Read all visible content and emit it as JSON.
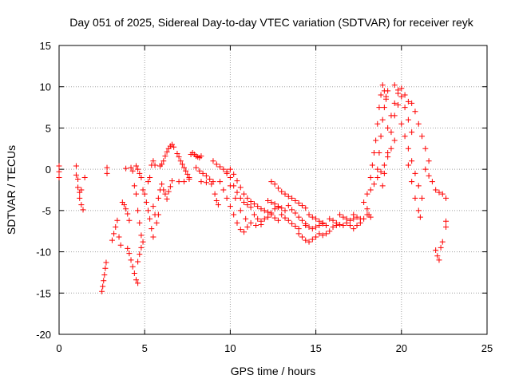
{
  "chart_data": {
    "type": "scatter",
    "title": "Day 051 of 2025, Sidereal Day-to-day VTEC variation (SDTVAR) for receiver reyk",
    "xlabel": "GPS time / hours",
    "ylabel": "SDTVAR / TECUs",
    "xlim": [
      0,
      25
    ],
    "ylim": [
      -20,
      15
    ],
    "xticks": [
      0,
      5,
      10,
      15,
      20,
      25
    ],
    "yticks": [
      -20,
      -15,
      -10,
      -5,
      0,
      5,
      10,
      15
    ],
    "grid": true,
    "marker": "+",
    "color": "#ff0000",
    "series": [
      {
        "name": "SDTVAR",
        "points": [
          [
            0.0,
            0.4
          ],
          [
            0.0,
            -0.3
          ],
          [
            0.0,
            -1.0
          ],
          [
            1.0,
            0.4
          ],
          [
            1.0,
            -0.7
          ],
          [
            1.1,
            -1.2
          ],
          [
            1.1,
            -2.2
          ],
          [
            1.2,
            -2.8
          ],
          [
            1.2,
            -3.5
          ],
          [
            1.3,
            -2.5
          ],
          [
            1.3,
            -4.3
          ],
          [
            1.4,
            -4.9
          ],
          [
            1.5,
            -1.0
          ],
          [
            2.5,
            -14.8
          ],
          [
            2.55,
            -14.2
          ],
          [
            2.6,
            -13.5
          ],
          [
            2.65,
            -12.8
          ],
          [
            2.7,
            -12.0
          ],
          [
            2.75,
            -11.3
          ],
          [
            2.8,
            0.2
          ],
          [
            2.8,
            -0.5
          ],
          [
            3.1,
            -8.6
          ],
          [
            3.2,
            -7.8
          ],
          [
            3.3,
            -7.0
          ],
          [
            3.4,
            -6.2
          ],
          [
            3.5,
            -8.2
          ],
          [
            3.6,
            -9.2
          ],
          [
            3.7,
            -4.0
          ],
          [
            3.8,
            -4.3
          ],
          [
            3.9,
            -4.8
          ],
          [
            4.0,
            -5.4
          ],
          [
            4.1,
            -6.2
          ],
          [
            3.9,
            0.1
          ],
          [
            4.2,
            0.2
          ],
          [
            4.3,
            -0.2
          ],
          [
            4.0,
            -9.6
          ],
          [
            4.1,
            -10.2
          ],
          [
            4.2,
            -11.0
          ],
          [
            4.3,
            -11.8
          ],
          [
            4.4,
            -12.6
          ],
          [
            4.5,
            -13.4
          ],
          [
            4.6,
            -13.8
          ],
          [
            4.4,
            -2.0
          ],
          [
            4.5,
            -3.0
          ],
          [
            4.6,
            -5.0
          ],
          [
            4.7,
            -6.5
          ],
          [
            4.8,
            -8.0
          ],
          [
            4.5,
            0.4
          ],
          [
            4.6,
            0.0
          ],
          [
            4.7,
            -0.5
          ],
          [
            4.8,
            -1.0
          ],
          [
            4.6,
            -11.2
          ],
          [
            4.7,
            -10.3
          ],
          [
            4.8,
            -9.5
          ],
          [
            4.9,
            -8.8
          ],
          [
            4.9,
            -2.5
          ],
          [
            5.0,
            -3.0
          ],
          [
            5.1,
            -4.0
          ],
          [
            5.2,
            -5.0
          ],
          [
            5.3,
            -6.0
          ],
          [
            5.4,
            -7.2
          ],
          [
            5.5,
            -8.2
          ],
          [
            5.2,
            -1.5
          ],
          [
            5.3,
            -1.0
          ],
          [
            5.4,
            0.5
          ],
          [
            5.5,
            1.0
          ],
          [
            5.6,
            0.5
          ],
          [
            5.5,
            -4.5
          ],
          [
            5.6,
            -5.5
          ],
          [
            5.7,
            -6.5
          ],
          [
            5.8,
            -5.5
          ],
          [
            5.8,
            -3.5
          ],
          [
            5.9,
            -2.5
          ],
          [
            6.0,
            -1.8
          ],
          [
            6.1,
            -2.5
          ],
          [
            6.2,
            -3.0
          ],
          [
            6.3,
            -3.6
          ],
          [
            6.4,
            -2.7
          ],
          [
            6.5,
            -2.1
          ],
          [
            6.6,
            -1.4
          ],
          [
            5.9,
            0.4
          ],
          [
            6.0,
            0.6
          ],
          [
            6.1,
            1.0
          ],
          [
            6.2,
            1.6
          ],
          [
            6.3,
            2.1
          ],
          [
            6.4,
            2.5
          ],
          [
            6.5,
            2.8
          ],
          [
            6.6,
            3.0
          ],
          [
            6.7,
            2.7
          ],
          [
            6.9,
            1.9
          ],
          [
            7.0,
            1.5
          ],
          [
            7.1,
            1.0
          ],
          [
            7.2,
            0.6
          ],
          [
            7.3,
            0.2
          ],
          [
            7.4,
            -0.2
          ],
          [
            7.5,
            -0.6
          ],
          [
            7.6,
            -1.0
          ],
          [
            7.0,
            -1.5
          ],
          [
            7.3,
            -1.5
          ],
          [
            7.6,
            -1.2
          ],
          [
            7.7,
            1.8
          ],
          [
            7.8,
            2.0
          ],
          [
            7.9,
            1.8
          ],
          [
            8.0,
            1.6
          ],
          [
            8.1,
            1.5
          ],
          [
            8.2,
            1.4
          ],
          [
            8.3,
            1.6
          ],
          [
            8.0,
            0.2
          ],
          [
            8.2,
            -0.2
          ],
          [
            8.4,
            -0.5
          ],
          [
            8.6,
            -0.8
          ],
          [
            8.8,
            -1.2
          ],
          [
            8.3,
            -1.5
          ],
          [
            8.6,
            -1.6
          ],
          [
            8.9,
            -1.8
          ],
          [
            9.0,
            1.0
          ],
          [
            9.2,
            0.6
          ],
          [
            9.4,
            0.3
          ],
          [
            9.6,
            0.0
          ],
          [
            9.8,
            -0.3
          ],
          [
            9.0,
            -1.5
          ],
          [
            9.1,
            -3.0
          ],
          [
            9.2,
            -3.8
          ],
          [
            9.3,
            -4.3
          ],
          [
            9.4,
            -1.5
          ],
          [
            9.6,
            -2.5
          ],
          [
            9.8,
            -3.5
          ],
          [
            10.0,
            -4.5
          ],
          [
            10.2,
            -5.5
          ],
          [
            10.4,
            -6.5
          ],
          [
            10.6,
            -7.3
          ],
          [
            10.8,
            -7.6
          ],
          [
            11.0,
            -7.0
          ],
          [
            9.8,
            -0.5
          ],
          [
            10.0,
            -1.0
          ],
          [
            10.2,
            -2.0
          ],
          [
            10.4,
            -2.8
          ],
          [
            10.6,
            -3.5
          ],
          [
            10.8,
            -4.0
          ],
          [
            11.0,
            -4.3
          ],
          [
            11.2,
            -4.6
          ],
          [
            10.0,
            0.0
          ],
          [
            10.2,
            -0.6
          ],
          [
            10.4,
            -1.4
          ],
          [
            10.6,
            -2.2
          ],
          [
            10.8,
            -3.0
          ],
          [
            11.0,
            -3.5
          ],
          [
            11.2,
            -3.9
          ],
          [
            11.4,
            -4.2
          ],
          [
            10.0,
            -2.0
          ],
          [
            10.3,
            -3.5
          ],
          [
            10.6,
            -5.0
          ],
          [
            10.9,
            -6.0
          ],
          [
            11.2,
            -6.5
          ],
          [
            11.5,
            -6.8
          ],
          [
            11.8,
            -6.7
          ],
          [
            11.4,
            -5.5
          ],
          [
            11.6,
            -6.0
          ],
          [
            11.8,
            -6.3
          ],
          [
            12.0,
            -6.0
          ],
          [
            12.2,
            -5.8
          ],
          [
            12.4,
            -5.3
          ],
          [
            12.6,
            -4.8
          ],
          [
            12.8,
            -4.6
          ],
          [
            11.6,
            -4.5
          ],
          [
            11.8,
            -4.8
          ],
          [
            12.0,
            -5.0
          ],
          [
            12.2,
            -5.2
          ],
          [
            12.4,
            -5.5
          ],
          [
            12.6,
            -5.9
          ],
          [
            12.8,
            -6.2
          ],
          [
            12.2,
            -3.8
          ],
          [
            12.4,
            -4.0
          ],
          [
            12.6,
            -4.2
          ],
          [
            12.8,
            -4.5
          ],
          [
            13.0,
            -4.7
          ],
          [
            13.2,
            -5.0
          ],
          [
            12.4,
            -1.5
          ],
          [
            12.6,
            -1.8
          ],
          [
            12.8,
            -2.3
          ],
          [
            13.0,
            -2.7
          ],
          [
            13.2,
            -3.0
          ],
          [
            13.4,
            -3.3
          ],
          [
            13.0,
            -5.5
          ],
          [
            13.2,
            -5.9
          ],
          [
            13.4,
            -6.2
          ],
          [
            13.6,
            -6.6
          ],
          [
            13.8,
            -6.9
          ],
          [
            14.0,
            -7.2
          ],
          [
            13.4,
            -4.4
          ],
          [
            13.6,
            -4.9
          ],
          [
            13.8,
            -5.3
          ],
          [
            14.0,
            -5.8
          ],
          [
            14.2,
            -6.2
          ],
          [
            14.4,
            -6.6
          ],
          [
            13.6,
            -3.5
          ],
          [
            13.8,
            -3.8
          ],
          [
            14.0,
            -4.1
          ],
          [
            14.2,
            -4.4
          ],
          [
            14.4,
            -4.7
          ],
          [
            14.0,
            -7.8
          ],
          [
            14.2,
            -8.2
          ],
          [
            14.4,
            -8.6
          ],
          [
            14.6,
            -8.8
          ],
          [
            14.8,
            -8.5
          ],
          [
            15.0,
            -8.2
          ],
          [
            14.4,
            -6.8
          ],
          [
            14.6,
            -7.0
          ],
          [
            14.8,
            -7.2
          ],
          [
            15.0,
            -7.0
          ],
          [
            15.2,
            -6.8
          ],
          [
            15.4,
            -6.5
          ],
          [
            14.6,
            -5.5
          ],
          [
            14.8,
            -5.8
          ],
          [
            15.0,
            -6.0
          ],
          [
            15.2,
            -6.3
          ],
          [
            15.4,
            -6.6
          ],
          [
            15.6,
            -6.8
          ],
          [
            15.2,
            -7.8
          ],
          [
            15.4,
            -8.0
          ],
          [
            15.6,
            -7.8
          ],
          [
            15.8,
            -7.5
          ],
          [
            16.0,
            -7.0
          ],
          [
            16.2,
            -6.8
          ],
          [
            15.8,
            -6.0
          ],
          [
            16.0,
            -6.2
          ],
          [
            16.2,
            -6.5
          ],
          [
            16.4,
            -6.7
          ],
          [
            16.6,
            -6.8
          ],
          [
            16.4,
            -5.5
          ],
          [
            16.6,
            -5.8
          ],
          [
            16.8,
            -6.0
          ],
          [
            17.0,
            -6.2
          ],
          [
            17.2,
            -6.0
          ],
          [
            16.8,
            -6.5
          ],
          [
            17.0,
            -6.8
          ],
          [
            17.2,
            -7.2
          ],
          [
            17.4,
            -6.8
          ],
          [
            17.6,
            -6.5
          ],
          [
            17.2,
            -5.5
          ],
          [
            17.4,
            -5.8
          ],
          [
            17.6,
            -6.0
          ],
          [
            17.8,
            -6.0
          ],
          [
            18.0,
            -5.5
          ],
          [
            17.8,
            -4.0
          ],
          [
            18.0,
            -4.8
          ],
          [
            18.1,
            -5.5
          ],
          [
            18.2,
            -5.8
          ],
          [
            18.0,
            -3.0
          ],
          [
            18.2,
            -2.5
          ],
          [
            18.4,
            -1.8
          ],
          [
            18.6,
            -1.0
          ],
          [
            18.8,
            -0.3
          ],
          [
            19.0,
            0.5
          ],
          [
            19.2,
            1.5
          ],
          [
            19.4,
            2.5
          ],
          [
            19.6,
            3.5
          ],
          [
            18.2,
            -1.0
          ],
          [
            18.3,
            0.5
          ],
          [
            18.4,
            2.0
          ],
          [
            18.5,
            3.5
          ],
          [
            18.6,
            5.5
          ],
          [
            18.7,
            7.5
          ],
          [
            18.8,
            9.0
          ],
          [
            18.9,
            10.2
          ],
          [
            19.0,
            9.5
          ],
          [
            19.1,
            8.5
          ],
          [
            18.6,
            0.0
          ],
          [
            18.7,
            2.0
          ],
          [
            18.8,
            4.0
          ],
          [
            18.9,
            6.0
          ],
          [
            19.0,
            7.5
          ],
          [
            19.1,
            8.8
          ],
          [
            19.2,
            9.5
          ],
          [
            18.9,
            -2.0
          ],
          [
            19.0,
            -0.5
          ],
          [
            19.2,
            2.0
          ],
          [
            19.4,
            4.5
          ],
          [
            19.6,
            6.5
          ],
          [
            19.8,
            7.8
          ],
          [
            19.2,
            5.0
          ],
          [
            19.4,
            6.5
          ],
          [
            19.6,
            8.0
          ],
          [
            19.8,
            9.2
          ],
          [
            20.0,
            9.8
          ],
          [
            20.2,
            9.0
          ],
          [
            20.4,
            8.2
          ],
          [
            19.6,
            10.2
          ],
          [
            19.8,
            9.6
          ],
          [
            20.0,
            8.8
          ],
          [
            20.2,
            7.5
          ],
          [
            20.4,
            6.0
          ],
          [
            20.6,
            4.5
          ],
          [
            20.0,
            5.5
          ],
          [
            20.2,
            4.0
          ],
          [
            20.4,
            2.5
          ],
          [
            20.6,
            1.0
          ],
          [
            20.8,
            -0.5
          ],
          [
            21.0,
            -2.0
          ],
          [
            21.2,
            -3.5
          ],
          [
            20.6,
            8.0
          ],
          [
            20.8,
            7.0
          ],
          [
            21.0,
            5.5
          ],
          [
            21.2,
            4.0
          ],
          [
            21.4,
            2.5
          ],
          [
            21.6,
            1.0
          ],
          [
            20.4,
            0.5
          ],
          [
            20.6,
            -1.5
          ],
          [
            20.8,
            -3.5
          ],
          [
            21.0,
            -5.0
          ],
          [
            21.1,
            -5.8
          ],
          [
            21.4,
            0.0
          ],
          [
            21.6,
            -0.8
          ],
          [
            21.8,
            -1.5
          ],
          [
            22.0,
            -2.5
          ],
          [
            22.2,
            -2.8
          ],
          [
            22.4,
            -3.0
          ],
          [
            22.6,
            -3.5
          ],
          [
            22.0,
            -9.8
          ],
          [
            22.1,
            -10.5
          ],
          [
            22.2,
            -11.0
          ],
          [
            22.3,
            -9.5
          ],
          [
            22.4,
            -8.8
          ],
          [
            22.6,
            -7.0
          ],
          [
            22.6,
            -6.3
          ]
        ]
      }
    ]
  }
}
